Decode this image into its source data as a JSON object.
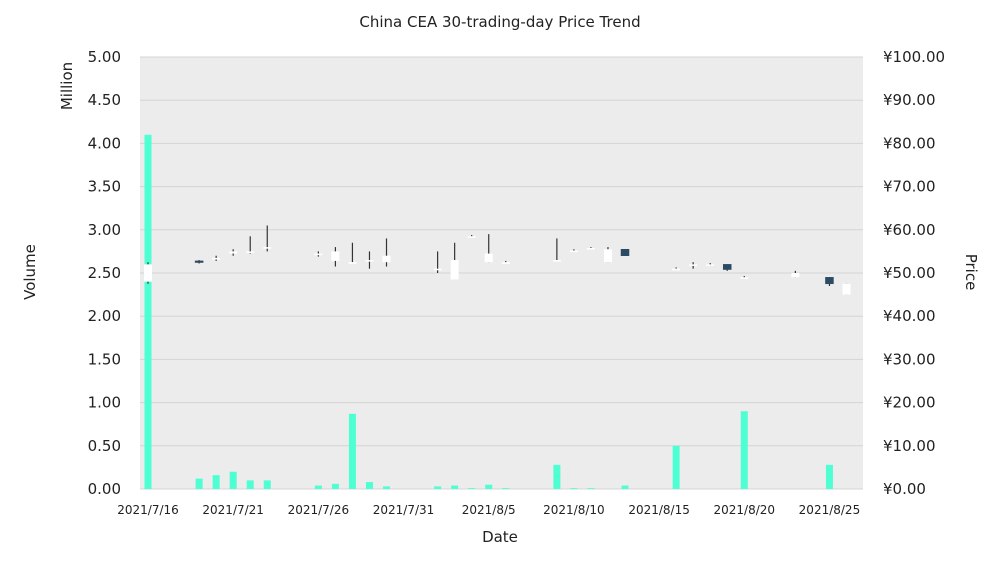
{
  "chart_data": {
    "type": "candlestick+bar",
    "title": "China CEA 30-trading-day Price Trend",
    "xlabel": "Date",
    "ylabel_left": "Volume",
    "ylabel_left_unit": "Million",
    "ylabel_right": "Price",
    "ylim_left": [
      0,
      5
    ],
    "ylim_right": [
      0,
      100
    ],
    "left_ticks": [
      "0.00",
      "0.50",
      "1.00",
      "1.50",
      "2.00",
      "2.50",
      "3.00",
      "3.50",
      "4.00",
      "4.50",
      "5.00"
    ],
    "right_ticks": [
      "¥0.00",
      "¥10.00",
      "¥20.00",
      "¥30.00",
      "¥40.00",
      "¥50.00",
      "¥60.00",
      "¥70.00",
      "¥80.00",
      "¥90.00",
      "¥100.00"
    ],
    "x_tick_labels": [
      {
        "day": 0,
        "label": "2021/7/16"
      },
      {
        "day": 5,
        "label": "2021/7/21"
      },
      {
        "day": 10,
        "label": "2021/7/26"
      },
      {
        "day": 15,
        "label": "2021/7/31"
      },
      {
        "day": 20,
        "label": "2021/8/5"
      },
      {
        "day": 25,
        "label": "2021/8/10"
      },
      {
        "day": 30,
        "label": "2021/8/15"
      },
      {
        "day": 35,
        "label": "2021/8/20"
      },
      {
        "day": 40,
        "label": "2021/8/25"
      }
    ],
    "grid": true,
    "colors": {
      "volume": "#4dffd2",
      "up": "#ffffff",
      "down": "#2b4a63",
      "wick": "#333333",
      "plot_bg": "#ececec",
      "grid": "#d4d4d4"
    },
    "series": [
      {
        "name": "Volume",
        "unit": "Million",
        "points": [
          {
            "day": 0,
            "value": 4.1
          },
          {
            "day": 3,
            "value": 0.12
          },
          {
            "day": 4,
            "value": 0.16
          },
          {
            "day": 5,
            "value": 0.2
          },
          {
            "day": 6,
            "value": 0.1
          },
          {
            "day": 7,
            "value": 0.1
          },
          {
            "day": 10,
            "value": 0.04
          },
          {
            "day": 11,
            "value": 0.06
          },
          {
            "day": 12,
            "value": 0.87
          },
          {
            "day": 13,
            "value": 0.08
          },
          {
            "day": 14,
            "value": 0.03
          },
          {
            "day": 17,
            "value": 0.03
          },
          {
            "day": 18,
            "value": 0.04
          },
          {
            "day": 19,
            "value": 0.01
          },
          {
            "day": 20,
            "value": 0.05
          },
          {
            "day": 21,
            "value": 0.01
          },
          {
            "day": 24,
            "value": 0.28
          },
          {
            "day": 25,
            "value": 0.01
          },
          {
            "day": 26,
            "value": 0.01
          },
          {
            "day": 28,
            "value": 0.04
          },
          {
            "day": 31,
            "value": 0.5
          },
          {
            "day": 35,
            "value": 0.9
          },
          {
            "day": 40,
            "value": 0.28
          }
        ]
      },
      {
        "name": "Price",
        "unit": "CNY",
        "ohlc": [
          {
            "day": 0,
            "open": 48.0,
            "high": 52.5,
            "low": 47.5,
            "close": 52.0
          },
          {
            "day": 3,
            "open": 52.8,
            "high": 53.0,
            "low": 52.2,
            "close": 52.5
          },
          {
            "day": 4,
            "open": 53.5,
            "high": 54.0,
            "low": 52.8,
            "close": 53.5
          },
          {
            "day": 5,
            "open": 54.5,
            "high": 55.5,
            "low": 54.0,
            "close": 55.0
          },
          {
            "day": 6,
            "open": 55.0,
            "high": 58.5,
            "low": 54.5,
            "close": 55.0
          },
          {
            "day": 7,
            "open": 55.8,
            "high": 61.0,
            "low": 55.0,
            "close": 56.0
          },
          {
            "day": 10,
            "open": 54.5,
            "high": 55.0,
            "low": 53.8,
            "close": 54.5
          },
          {
            "day": 11,
            "open": 52.8,
            "high": 56.0,
            "low": 51.5,
            "close": 55.0
          },
          {
            "day": 12,
            "open": 52.5,
            "high": 57.0,
            "low": 52.5,
            "close": 52.5
          },
          {
            "day": 13,
            "open": 53.0,
            "high": 55.0,
            "low": 51.0,
            "close": 53.0
          },
          {
            "day": 14,
            "open": 52.5,
            "high": 58.0,
            "low": 51.5,
            "close": 54.0
          },
          {
            "day": 17,
            "open": 51.0,
            "high": 55.0,
            "low": 50.0,
            "close": 51.0
          },
          {
            "day": 18,
            "open": 48.5,
            "high": 57.0,
            "low": 48.5,
            "close": 53.0
          },
          {
            "day": 19,
            "open": 58.5,
            "high": 58.8,
            "low": 58.5,
            "close": 58.5
          },
          {
            "day": 20,
            "open": 52.5,
            "high": 59.0,
            "low": 52.5,
            "close": 54.5
          },
          {
            "day": 21,
            "open": 52.5,
            "high": 52.8,
            "low": 52.5,
            "close": 52.5
          },
          {
            "day": 24,
            "open": 53.0,
            "high": 58.0,
            "low": 53.0,
            "close": 53.0
          },
          {
            "day": 25,
            "open": 55.2,
            "high": 55.5,
            "low": 55.0,
            "close": 55.2
          },
          {
            "day": 26,
            "open": 55.8,
            "high": 56.0,
            "low": 55.5,
            "close": 55.8
          },
          {
            "day": 27,
            "open": 52.5,
            "high": 56.0,
            "low": 52.5,
            "close": 55.5
          },
          {
            "day": 28,
            "open": 55.5,
            "high": 55.5,
            "low": 54.0,
            "close": 54.0
          },
          {
            "day": 31,
            "open": 51.0,
            "high": 51.3,
            "low": 51.0,
            "close": 51.0
          },
          {
            "day": 32,
            "open": 52.0,
            "high": 52.5,
            "low": 51.0,
            "close": 52.0
          },
          {
            "day": 33,
            "open": 52.0,
            "high": 52.3,
            "low": 51.7,
            "close": 52.0
          },
          {
            "day": 34,
            "open": 52.0,
            "high": 52.0,
            "low": 50.5,
            "close": 50.8
          },
          {
            "day": 35,
            "open": 49.0,
            "high": 49.3,
            "low": 49.0,
            "close": 49.0
          },
          {
            "day": 38,
            "open": 49.0,
            "high": 50.5,
            "low": 49.0,
            "close": 50.0
          },
          {
            "day": 40,
            "open": 49.0,
            "high": 49.0,
            "low": 47.0,
            "close": 47.5
          },
          {
            "day": 41,
            "open": 45.0,
            "high": 47.5,
            "low": 45.0,
            "close": 47.5
          }
        ]
      }
    ]
  }
}
